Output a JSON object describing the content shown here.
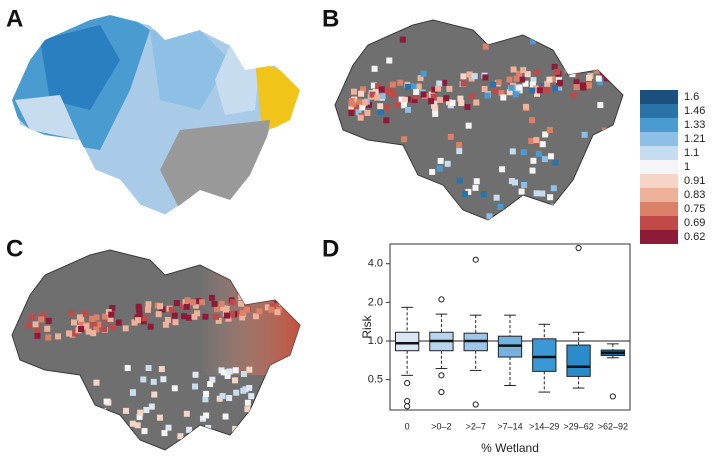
{
  "panel_labels": [
    "A",
    "B",
    "C",
    "D"
  ],
  "colorbar": {
    "ticks": [
      1.6,
      1.46,
      1.33,
      1.21,
      1.1,
      1,
      0.91,
      0.83,
      0.75,
      0.69,
      0.62
    ],
    "colors": [
      "#1b4f7c",
      "#2a73a8",
      "#4a9bd0",
      "#8ec0e5",
      "#c7ddef",
      "#f5f5f5",
      "#f6d5c7",
      "#eeb19a",
      "#dc8068",
      "#c04a4a",
      "#8e1a3a"
    ]
  },
  "chart_data": {
    "type": "box",
    "xlabel": "% Wetland",
    "ylabel": "Risk",
    "categories": [
      "0",
      ">0–2",
      ">2–7",
      ">7–14",
      ">14–29",
      ">29–62",
      ">62–92"
    ],
    "boxes": [
      {
        "low": 0.54,
        "q1": 0.84,
        "median": 0.96,
        "q3": 1.17,
        "high": 1.83,
        "outliers": [
          0.47,
          0.34,
          0.31
        ],
        "color": "#dbe6f3"
      },
      {
        "low": 0.61,
        "q1": 0.84,
        "median": 1.0,
        "q3": 1.17,
        "high": 1.62,
        "outliers": [
          2.11,
          0.54,
          0.4
        ],
        "color": "#b9d4ec"
      },
      {
        "low": 0.59,
        "q1": 0.84,
        "median": 1.0,
        "q3": 1.15,
        "high": 1.59,
        "outliers": [
          4.3,
          0.32
        ],
        "color": "#9fc5e8"
      },
      {
        "low": 0.45,
        "q1": 0.75,
        "median": 0.92,
        "q3": 1.09,
        "high": 1.59,
        "outliers": [],
        "color": "#74b3e0"
      },
      {
        "low": 0.4,
        "q1": 0.58,
        "median": 0.75,
        "q3": 1.04,
        "high": 1.35,
        "outliers": [],
        "color": "#3a99d4"
      },
      {
        "low": 0.43,
        "q1": 0.53,
        "median": 0.63,
        "q3": 0.93,
        "high": 1.17,
        "outliers": [
          5.3
        ],
        "color": "#2a8ccb"
      },
      {
        "low": 0.74,
        "q1": 0.77,
        "median": 0.81,
        "q3": 0.85,
        "high": 0.95,
        "outliers": [
          0.37
        ],
        "color": "#1a6fa8"
      }
    ],
    "ylim": [
      0.29,
      5.7
    ],
    "log_scale": true,
    "reference_line": 1,
    "yticks": [
      0.5,
      {
        "value": 1,
        "label": "1.0"
      },
      {
        "value": 2,
        "label": "2.0"
      },
      {
        "value": 4,
        "label": "4.0"
      }
    ]
  }
}
